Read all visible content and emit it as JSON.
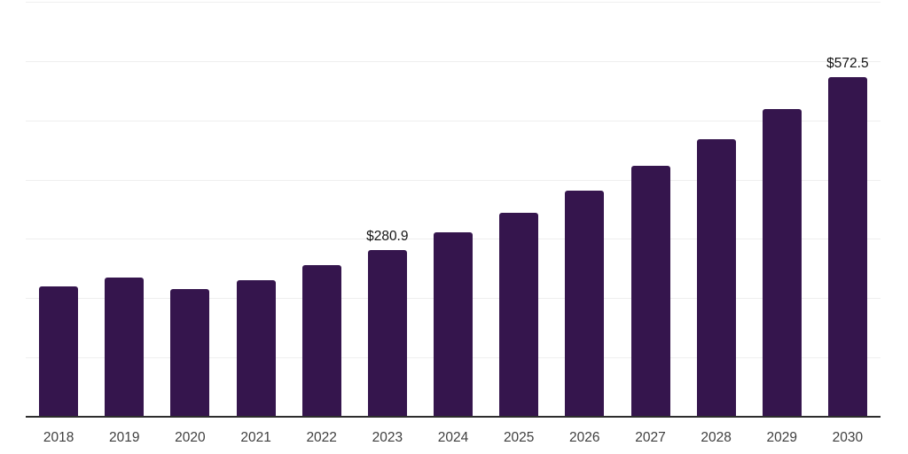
{
  "chart": {
    "background_color": "#ffffff"
  },
  "chart_data": {
    "type": "bar",
    "title": "",
    "xlabel": "",
    "ylabel": "",
    "categories": [
      "2018",
      "2019",
      "2020",
      "2021",
      "2022",
      "2023",
      "2024",
      "2025",
      "2026",
      "2027",
      "2028",
      "2029",
      "2030"
    ],
    "values": [
      220,
      235,
      215,
      230,
      256,
      280.9,
      311,
      344,
      381,
      423,
      468,
      519,
      572.5
    ],
    "data_labels": [
      "",
      "",
      "",
      "",
      "",
      "$280.9",
      "",
      "",
      "",
      "",
      "",
      "",
      "$572.5"
    ],
    "ylim": [
      0,
      700
    ],
    "gridline_values": [
      100,
      200,
      300,
      400,
      500,
      600,
      700
    ],
    "grid": true,
    "legend": "none",
    "y_axis_tick_labels": "none",
    "bar_color": "#35154D",
    "axis_color": "#2d2d2d",
    "grid_color": "#efefef",
    "tick_label_color": "#3f3f3f",
    "data_label_color": "#141414"
  }
}
